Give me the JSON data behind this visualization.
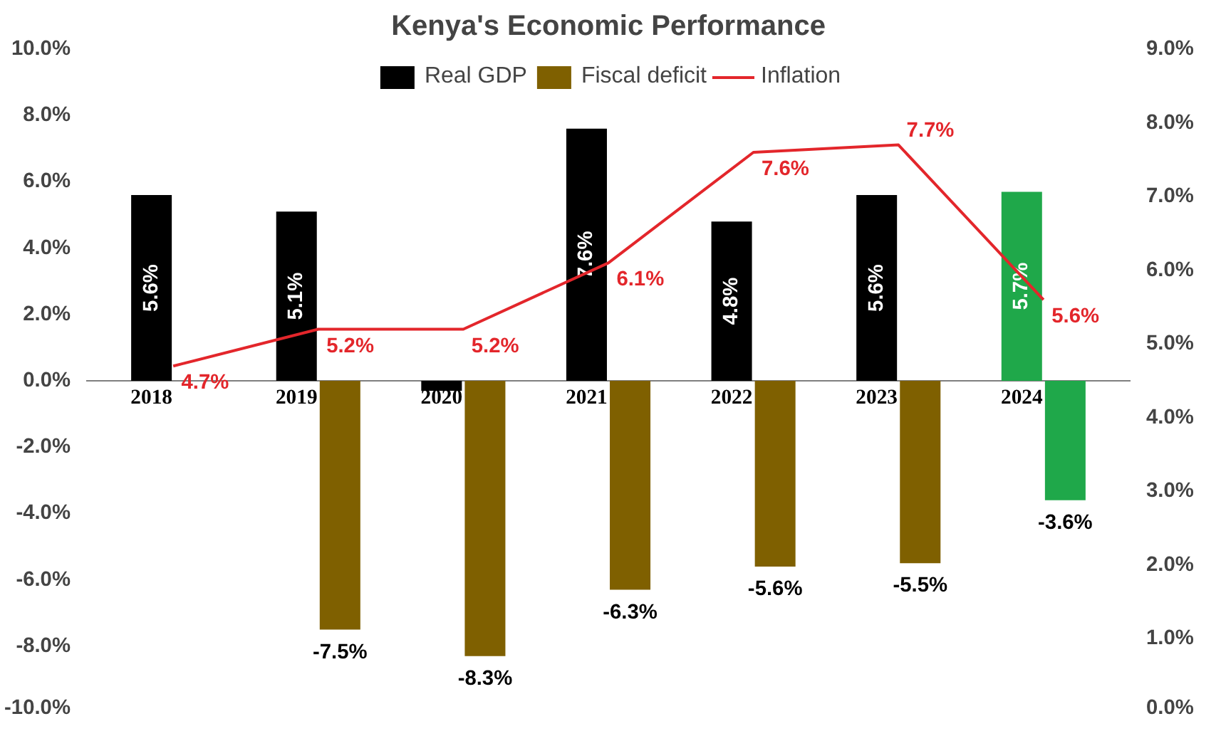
{
  "chart_data": {
    "type": "bar",
    "title": "Kenya's Economic Performance",
    "categories": [
      "2018",
      "2019",
      "2020",
      "2021",
      "2022",
      "2023",
      "2024"
    ],
    "series": [
      {
        "name": "Real GDP",
        "colors": [
          "#000000",
          "#000000",
          "#000000",
          "#000000",
          "#000000",
          "#000000",
          "#1fa84a"
        ],
        "values": [
          5.6,
          5.1,
          -0.3,
          7.6,
          4.8,
          5.6,
          5.7
        ],
        "value_labels": [
          "5.6%",
          "5.1%",
          null,
          "7.6%",
          "4.8%",
          "5.6%",
          "5.7%"
        ]
      },
      {
        "name": "Fiscal deficit",
        "colors": [
          "#7f6000",
          "#7f6000",
          "#7f6000",
          "#7f6000",
          "#7f6000",
          "#7f6000",
          "#1fa84a"
        ],
        "values": [
          null,
          -7.5,
          -8.3,
          -6.3,
          -5.6,
          -5.5,
          -3.6
        ],
        "value_labels": [
          null,
          "-7.5%",
          "-8.3%",
          "-6.3%",
          "-5.6%",
          "-5.5%",
          "-3.6%"
        ]
      },
      {
        "name": "Inflation",
        "type": "line",
        "axis": "y2",
        "color": "#e3262b",
        "values": [
          4.7,
          5.2,
          5.2,
          6.1,
          7.6,
          7.7,
          5.6
        ],
        "value_labels": [
          "4.7%",
          "5.2%",
          "5.2%",
          "6.1%",
          "7.6%",
          "7.7%",
          "5.6%"
        ]
      }
    ],
    "ylim": [
      -10,
      10
    ],
    "yticks": [
      {
        "value": -10,
        "label": "-10.0%"
      },
      {
        "value": -8,
        "label": "-8.0%"
      },
      {
        "value": -6,
        "label": "-6.0%"
      },
      {
        "value": -4,
        "label": "-4.0%"
      },
      {
        "value": -2,
        "label": "-2.0%"
      },
      {
        "value": 0,
        "label": "0.0%"
      },
      {
        "value": 2,
        "label": "2.0%"
      },
      {
        "value": 4,
        "label": "4.0%"
      },
      {
        "value": 6,
        "label": "6.0%"
      },
      {
        "value": 8,
        "label": "8.0%"
      },
      {
        "value": 10,
        "label": "10.0%"
      }
    ],
    "y2lim": [
      0,
      9
    ],
    "y2ticks": [
      {
        "value": 0,
        "label": "0.0%"
      },
      {
        "value": 1,
        "label": "1.0%"
      },
      {
        "value": 2,
        "label": "2.0%"
      },
      {
        "value": 3,
        "label": "3.0%"
      },
      {
        "value": 4,
        "label": "4.0%"
      },
      {
        "value": 5,
        "label": "5.0%"
      },
      {
        "value": 6,
        "label": "6.0%"
      },
      {
        "value": 7,
        "label": "7.0%"
      },
      {
        "value": 8,
        "label": "8.0%"
      },
      {
        "value": 9,
        "label": "9.0%"
      }
    ],
    "grid": false,
    "legend": "top",
    "line_style": "solid",
    "marker": "none"
  }
}
